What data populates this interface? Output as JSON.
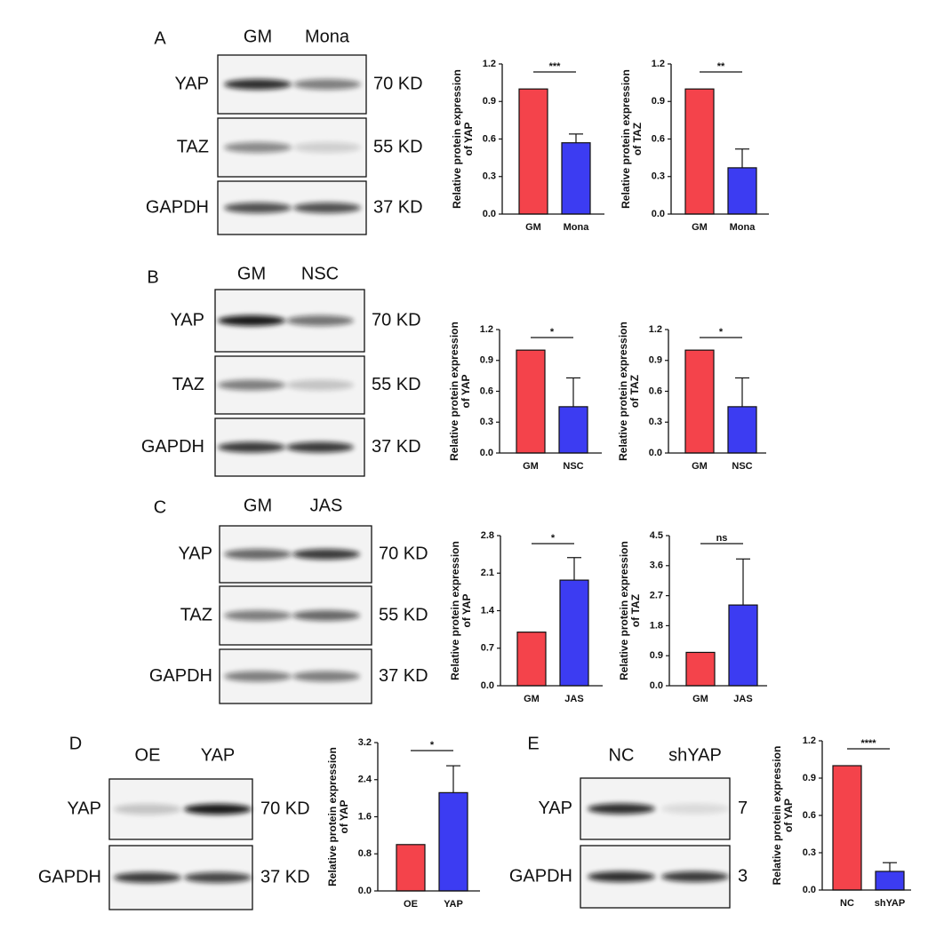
{
  "blots": [
    {
      "label": "A",
      "lanes": [
        "GM",
        "Mona"
      ],
      "rows": [
        {
          "name": "YAP",
          "size": "70 KD"
        },
        {
          "name": "TAZ",
          "size": "55 KD"
        },
        {
          "name": "GAPDH",
          "size": "37 KD"
        }
      ]
    },
    {
      "label": "B",
      "lanes": [
        "GM",
        "NSC"
      ],
      "rows": [
        {
          "name": "YAP",
          "size": "70 KD"
        },
        {
          "name": "TAZ",
          "size": "55 KD"
        },
        {
          "name": "GAPDH",
          "size": "37 KD"
        }
      ]
    },
    {
      "label": "C",
      "lanes": [
        "GM",
        "JAS"
      ],
      "rows": [
        {
          "name": "YAP",
          "size": "70 KD"
        },
        {
          "name": "TAZ",
          "size": "55 KD"
        },
        {
          "name": "GAPDH",
          "size": "37 KD"
        }
      ]
    },
    {
      "label": "D",
      "lanes": [
        "OE",
        "YAP"
      ],
      "rows": [
        {
          "name": "YAP",
          "size": "70 KD"
        },
        {
          "name": "GAPDH",
          "size": "37 KD"
        }
      ]
    },
    {
      "label": "E",
      "lanes": [
        "NC",
        "shYAP"
      ],
      "rows": [
        {
          "name": "YAP",
          "size": "7"
        },
        {
          "name": "GAPDH",
          "size": "3"
        }
      ]
    }
  ],
  "chart_data": [
    {
      "type": "bar",
      "ylabel": [
        "Relative protein expression",
        "of YAP"
      ],
      "categories": [
        "GM",
        "Mona"
      ],
      "values": [
        1,
        0.57
      ],
      "errors": [
        0,
        0.07
      ],
      "colors": [
        "#f4434b",
        "#3c3cf2"
      ],
      "ylim": [
        0,
        1.2
      ],
      "yticks": [
        {
          "value": 0,
          "label": "0.0"
        },
        0.3,
        0.6,
        0.9,
        1.2
      ],
      "significance": "***"
    },
    {
      "type": "bar",
      "ylabel": [
        "Relative protein expression",
        "of TAZ"
      ],
      "categories": [
        "GM",
        "Mona"
      ],
      "values": [
        1,
        0.37
      ],
      "errors": [
        0,
        0.15
      ],
      "colors": [
        "#f4434b",
        "#3c3cf2"
      ],
      "ylim": [
        0,
        1.2
      ],
      "yticks": [
        {
          "value": 0,
          "label": "0.0"
        },
        0.3,
        0.6,
        0.9,
        1.2
      ],
      "significance": "**"
    },
    {
      "type": "bar",
      "ylabel": [
        "Relative protein expression",
        "of YAP"
      ],
      "categories": [
        "GM",
        "NSC"
      ],
      "values": [
        1,
        0.45
      ],
      "errors": [
        0,
        0.28
      ],
      "colors": [
        "#f4434b",
        "#3c3cf2"
      ],
      "ylim": [
        0,
        1.2
      ],
      "yticks": [
        {
          "value": 0,
          "label": "0.0"
        },
        0.3,
        0.6,
        0.9,
        1.2
      ],
      "significance": "*"
    },
    {
      "type": "bar",
      "ylabel": [
        "Relative protein expression",
        "of TAZ"
      ],
      "categories": [
        "GM",
        "NSC"
      ],
      "values": [
        1,
        0.45
      ],
      "errors": [
        0,
        0.28
      ],
      "colors": [
        "#f4434b",
        "#3c3cf2"
      ],
      "ylim": [
        0,
        1.2
      ],
      "yticks": [
        {
          "value": 0,
          "label": "0.0"
        },
        0.3,
        0.6,
        0.9,
        1.2
      ],
      "significance": "*"
    },
    {
      "type": "bar",
      "ylabel": [
        "Relative protein expression",
        "of YAP"
      ],
      "categories": [
        "GM",
        "JAS"
      ],
      "values": [
        1,
        1.97
      ],
      "errors": [
        0,
        0.42
      ],
      "colors": [
        "#f4434b",
        "#3c3cf2"
      ],
      "ylim": [
        0,
        2.8
      ],
      "yticks": [
        {
          "value": 0,
          "label": "0.0"
        },
        0.7,
        1.4,
        2.1,
        2.8
      ],
      "significance": "*"
    },
    {
      "type": "bar",
      "ylabel": [
        "Relative protein expression",
        "of TAZ"
      ],
      "categories": [
        "GM",
        "JAS"
      ],
      "values": [
        1,
        2.42
      ],
      "errors": [
        0,
        1.38
      ],
      "colors": [
        "#f4434b",
        "#3c3cf2"
      ],
      "ylim": [
        0,
        4.5
      ],
      "yticks": [
        {
          "value": 0,
          "label": "0.0"
        },
        0.9,
        1.8,
        2.7,
        3.6,
        4.5
      ],
      "significance": "ns"
    },
    {
      "type": "bar",
      "ylabel": [
        "Relative protein expression",
        "of YAP"
      ],
      "categories": [
        "OE",
        "YAP"
      ],
      "values": [
        1,
        2.12
      ],
      "errors": [
        0,
        0.58
      ],
      "colors": [
        "#f4434b",
        "#3c3cf2"
      ],
      "ylim": [
        0,
        3.2
      ],
      "yticks": [
        {
          "value": 0,
          "label": "0.0"
        },
        0.8,
        1.6,
        2.4,
        3.2
      ],
      "significance": "*"
    },
    {
      "type": "bar",
      "ylabel": [
        "Relative protein expression",
        "of YAP"
      ],
      "categories": [
        "NC",
        "shYAP"
      ],
      "values": [
        1,
        0.15
      ],
      "errors": [
        0,
        0.07
      ],
      "colors": [
        "#f4434b",
        "#3c3cf2"
      ],
      "ylim": [
        0,
        1.2
      ],
      "yticks": [
        {
          "value": 0,
          "label": "0.0"
        },
        0.3,
        0.6,
        0.9,
        1.2
      ],
      "significance": "****"
    }
  ]
}
